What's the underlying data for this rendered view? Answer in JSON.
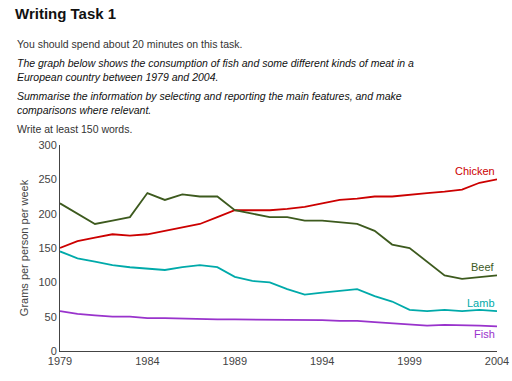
{
  "chart_data": {
    "type": "line",
    "title": "Writing Task 1",
    "subtitle": [
      "You should spend about 20 minutes on this task.",
      "The graph below shows the consumption of fish and some different kinds of meat in a",
      "European country between 1979 and 2004.",
      "Summarise the information by selecting and reporting the main features, and make",
      "comparisons where relevant.",
      "Write at least 150 words."
    ],
    "y_label": "Grams per person per week",
    "x": [
      1979,
      1980,
      1981,
      1982,
      1983,
      1984,
      1985,
      1986,
      1987,
      1988,
      1989,
      1990,
      1991,
      1992,
      1993,
      1994,
      1995,
      1996,
      1997,
      1998,
      1999,
      2000,
      2001,
      2002,
      2003,
      2004
    ],
    "series": [
      {
        "name": "Chicken",
        "color": "#cc0000",
        "values": [
          150,
          160,
          165,
          170,
          168,
          170,
          175,
          180,
          185,
          195,
          205,
          205,
          205,
          207,
          210,
          215,
          220,
          222,
          225,
          225,
          228,
          230,
          232,
          235,
          245,
          250
        ]
      },
      {
        "name": "Beef",
        "color": "#3d5a1e",
        "values": [
          215,
          200,
          185,
          190,
          195,
          230,
          220,
          228,
          225,
          225,
          205,
          200,
          195,
          195,
          190,
          190,
          188,
          185,
          175,
          155,
          150,
          130,
          110,
          105,
          108,
          110
        ]
      },
      {
        "name": "Lamb",
        "color": "#00aaaa",
        "values": [
          145,
          135,
          130,
          125,
          122,
          120,
          118,
          122,
          125,
          122,
          108,
          102,
          100,
          90,
          82,
          85,
          88,
          90,
          80,
          72,
          60,
          58,
          60,
          58,
          60,
          58
        ]
      },
      {
        "name": "Fish",
        "color": "#9933cc",
        "values": [
          58,
          54,
          52,
          50,
          50,
          48,
          48,
          47,
          46,
          46,
          46,
          46,
          45,
          45,
          45,
          45,
          44,
          44,
          42,
          40,
          38,
          37,
          38,
          38,
          37,
          36
        ]
      }
    ],
    "xlim": [
      1979,
      2004
    ],
    "xticks": [
      1979,
      1984,
      1989,
      1994,
      1999,
      2004
    ],
    "ylim": [
      0,
      300
    ],
    "yticks": [
      0,
      50,
      100,
      150,
      200,
      250,
      300
    ],
    "grid": false
  }
}
